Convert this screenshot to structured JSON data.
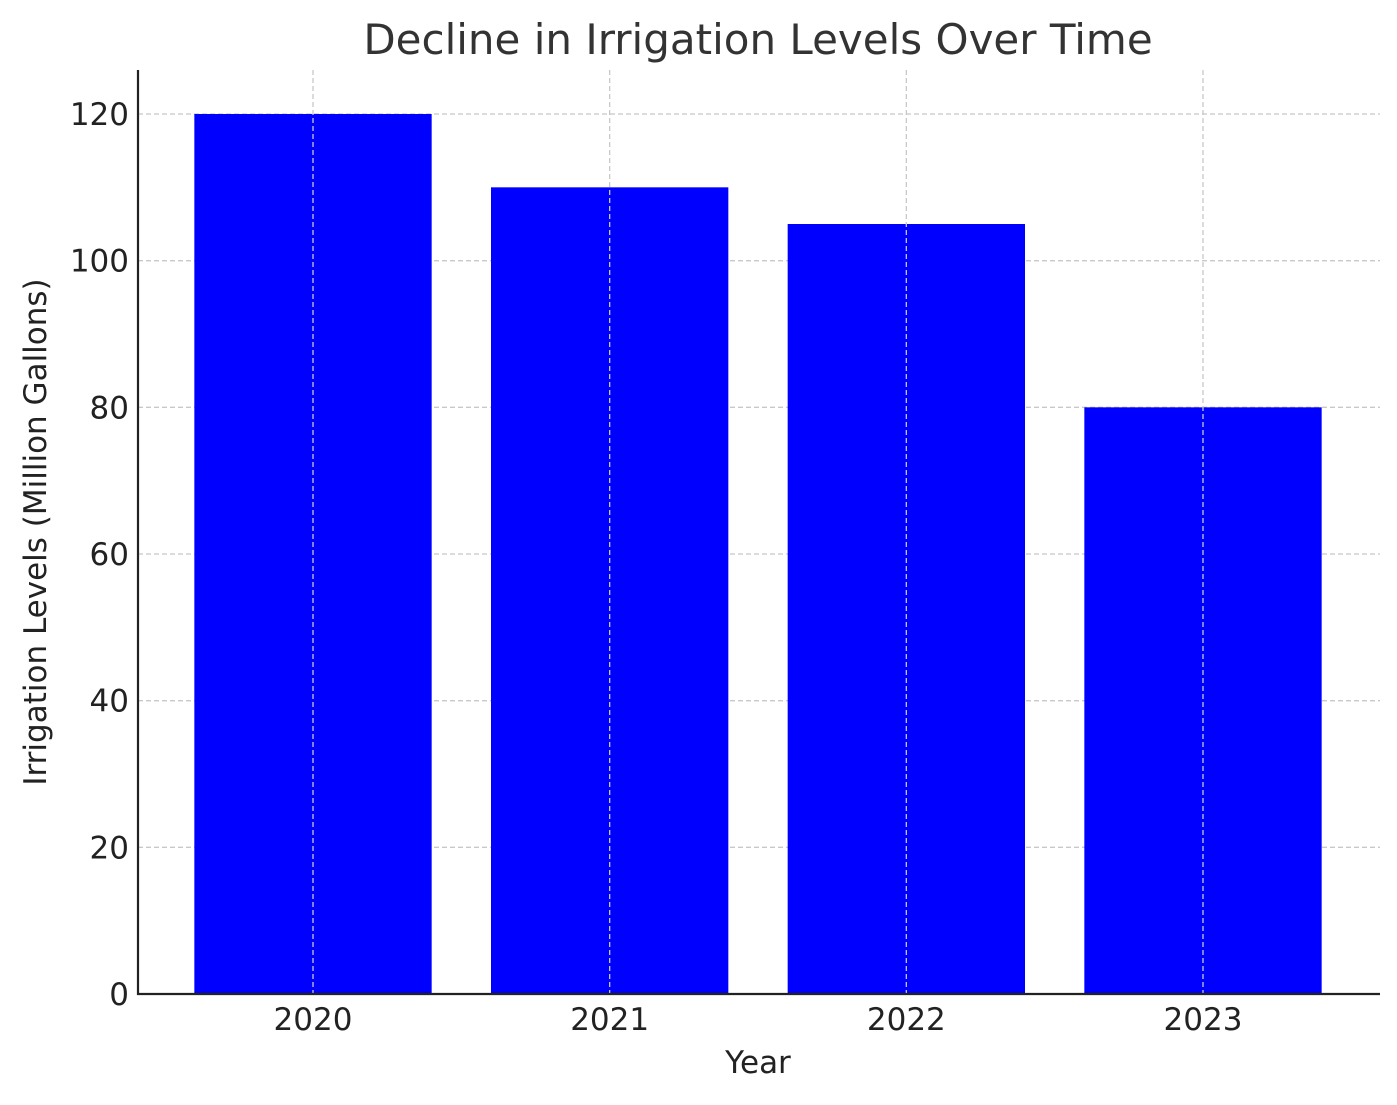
{
  "chart_data": {
    "type": "bar",
    "title": "Decline in Irrigation Levels Over Time",
    "xlabel": "Year",
    "ylabel": "Irrigation Levels (Million Gallons)",
    "categories": [
      "2020",
      "2021",
      "2022",
      "2023"
    ],
    "values": [
      120,
      110,
      105,
      80
    ],
    "ylim": [
      0,
      126
    ],
    "yticks": [
      0,
      20,
      40,
      60,
      80,
      100,
      120
    ],
    "grid": true,
    "bar_color": "#0000ff",
    "grid_color": "#c8c8c8",
    "axis_color": "#222222",
    "text_color": "#222222",
    "title_color": "#333333"
  }
}
